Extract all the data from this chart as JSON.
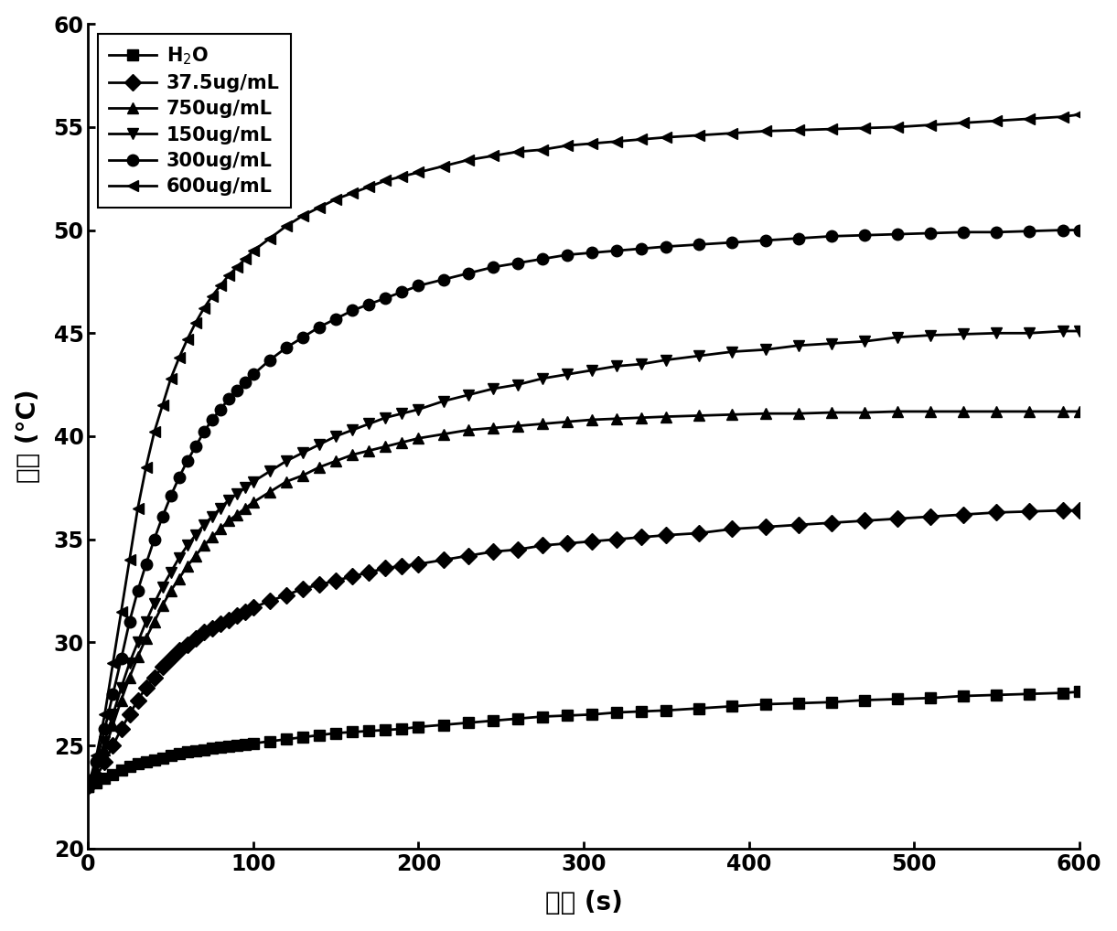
{
  "title": "",
  "xlabel": "时间 (s)",
  "ylabel": "温度 (°C)",
  "xlim": [
    0,
    600
  ],
  "ylim": [
    20,
    60
  ],
  "xticks": [
    0,
    100,
    200,
    300,
    400,
    500,
    600
  ],
  "yticks": [
    20,
    25,
    30,
    35,
    40,
    45,
    50,
    55,
    60
  ],
  "series": [
    {
      "label": "H$_2$O",
      "marker": "s",
      "color": "#000000",
      "x": [
        0,
        5,
        10,
        15,
        20,
        25,
        30,
        35,
        40,
        45,
        50,
        55,
        60,
        65,
        70,
        75,
        80,
        85,
        90,
        95,
        100,
        110,
        120,
        130,
        140,
        150,
        160,
        170,
        180,
        190,
        200,
        215,
        230,
        245,
        260,
        275,
        290,
        305,
        320,
        335,
        350,
        370,
        390,
        410,
        430,
        450,
        470,
        490,
        510,
        530,
        550,
        570,
        590,
        600
      ],
      "y": [
        23.0,
        23.2,
        23.4,
        23.6,
        23.8,
        24.0,
        24.1,
        24.2,
        24.3,
        24.4,
        24.5,
        24.6,
        24.7,
        24.75,
        24.8,
        24.85,
        24.9,
        24.95,
        25.0,
        25.05,
        25.1,
        25.2,
        25.3,
        25.4,
        25.5,
        25.6,
        25.65,
        25.7,
        25.75,
        25.8,
        25.9,
        26.0,
        26.1,
        26.2,
        26.3,
        26.4,
        26.45,
        26.5,
        26.6,
        26.65,
        26.7,
        26.8,
        26.9,
        27.0,
        27.05,
        27.1,
        27.2,
        27.25,
        27.3,
        27.4,
        27.45,
        27.5,
        27.55,
        27.6
      ]
    },
    {
      "label": "37.5ug/mL",
      "marker": "D",
      "color": "#000000",
      "x": [
        0,
        5,
        10,
        15,
        20,
        25,
        30,
        35,
        40,
        45,
        50,
        55,
        60,
        65,
        70,
        75,
        80,
        85,
        90,
        95,
        100,
        110,
        120,
        130,
        140,
        150,
        160,
        170,
        180,
        190,
        200,
        215,
        230,
        245,
        260,
        275,
        290,
        305,
        320,
        335,
        350,
        370,
        390,
        410,
        430,
        450,
        470,
        490,
        510,
        530,
        550,
        570,
        590,
        600
      ],
      "y": [
        23.0,
        23.5,
        24.2,
        25.0,
        25.8,
        26.5,
        27.2,
        27.8,
        28.3,
        28.8,
        29.2,
        29.6,
        29.9,
        30.2,
        30.5,
        30.7,
        30.9,
        31.1,
        31.3,
        31.5,
        31.7,
        32.0,
        32.3,
        32.6,
        32.8,
        33.0,
        33.2,
        33.4,
        33.6,
        33.7,
        33.8,
        34.0,
        34.2,
        34.4,
        34.5,
        34.7,
        34.8,
        34.9,
        35.0,
        35.1,
        35.2,
        35.3,
        35.5,
        35.6,
        35.7,
        35.8,
        35.9,
        36.0,
        36.1,
        36.2,
        36.3,
        36.35,
        36.4,
        36.4
      ]
    },
    {
      "label": "750ug/mL",
      "marker": "^",
      "color": "#000000",
      "x": [
        0,
        5,
        10,
        15,
        20,
        25,
        30,
        35,
        40,
        45,
        50,
        55,
        60,
        65,
        70,
        75,
        80,
        85,
        90,
        95,
        100,
        110,
        120,
        130,
        140,
        150,
        160,
        170,
        180,
        190,
        200,
        215,
        230,
        245,
        260,
        275,
        290,
        305,
        320,
        335,
        350,
        370,
        390,
        410,
        430,
        450,
        470,
        490,
        510,
        530,
        550,
        570,
        590,
        600
      ],
      "y": [
        23.0,
        23.8,
        24.8,
        26.0,
        27.2,
        28.3,
        29.3,
        30.2,
        31.0,
        31.8,
        32.5,
        33.1,
        33.7,
        34.2,
        34.7,
        35.1,
        35.5,
        35.9,
        36.2,
        36.5,
        36.8,
        37.3,
        37.8,
        38.1,
        38.5,
        38.8,
        39.1,
        39.3,
        39.5,
        39.7,
        39.9,
        40.1,
        40.3,
        40.4,
        40.5,
        40.6,
        40.7,
        40.8,
        40.85,
        40.9,
        40.95,
        41.0,
        41.05,
        41.1,
        41.1,
        41.15,
        41.15,
        41.2,
        41.2,
        41.2,
        41.2,
        41.2,
        41.2,
        41.2
      ]
    },
    {
      "label": "150ug/mL",
      "marker": "v",
      "color": "#000000",
      "x": [
        0,
        5,
        10,
        15,
        20,
        25,
        30,
        35,
        40,
        45,
        50,
        55,
        60,
        65,
        70,
        75,
        80,
        85,
        90,
        95,
        100,
        110,
        120,
        130,
        140,
        150,
        160,
        170,
        180,
        190,
        200,
        215,
        230,
        245,
        260,
        275,
        290,
        305,
        320,
        335,
        350,
        370,
        390,
        410,
        430,
        450,
        470,
        490,
        510,
        530,
        550,
        570,
        590,
        600
      ],
      "y": [
        23.0,
        24.0,
        25.2,
        26.5,
        27.8,
        29.0,
        30.0,
        31.0,
        31.9,
        32.7,
        33.4,
        34.1,
        34.7,
        35.2,
        35.7,
        36.1,
        36.5,
        36.9,
        37.2,
        37.5,
        37.8,
        38.3,
        38.8,
        39.2,
        39.6,
        40.0,
        40.3,
        40.6,
        40.9,
        41.1,
        41.3,
        41.7,
        42.0,
        42.3,
        42.5,
        42.8,
        43.0,
        43.2,
        43.4,
        43.5,
        43.7,
        43.9,
        44.1,
        44.2,
        44.4,
        44.5,
        44.6,
        44.8,
        44.9,
        44.95,
        45.0,
        45.0,
        45.1,
        45.1
      ]
    },
    {
      "label": "300ug/mL",
      "marker": "o",
      "color": "#000000",
      "x": [
        0,
        5,
        10,
        15,
        20,
        25,
        30,
        35,
        40,
        45,
        50,
        55,
        60,
        65,
        70,
        75,
        80,
        85,
        90,
        95,
        100,
        110,
        120,
        130,
        140,
        150,
        160,
        170,
        180,
        190,
        200,
        215,
        230,
        245,
        260,
        275,
        290,
        305,
        320,
        335,
        350,
        370,
        390,
        410,
        430,
        450,
        470,
        490,
        510,
        530,
        550,
        570,
        590,
        600
      ],
      "y": [
        23.0,
        24.2,
        25.8,
        27.5,
        29.2,
        31.0,
        32.5,
        33.8,
        35.0,
        36.1,
        37.1,
        38.0,
        38.8,
        39.5,
        40.2,
        40.8,
        41.3,
        41.8,
        42.2,
        42.6,
        43.0,
        43.7,
        44.3,
        44.8,
        45.3,
        45.7,
        46.1,
        46.4,
        46.7,
        47.0,
        47.3,
        47.6,
        47.9,
        48.2,
        48.4,
        48.6,
        48.8,
        48.9,
        49.0,
        49.1,
        49.2,
        49.3,
        49.4,
        49.5,
        49.6,
        49.7,
        49.75,
        49.8,
        49.85,
        49.9,
        49.9,
        49.95,
        50.0,
        50.0
      ]
    },
    {
      "label": "600ug/mL",
      "marker": "<",
      "color": "#000000",
      "x": [
        0,
        5,
        10,
        15,
        20,
        25,
        30,
        35,
        40,
        45,
        50,
        55,
        60,
        65,
        70,
        75,
        80,
        85,
        90,
        95,
        100,
        110,
        120,
        130,
        140,
        150,
        160,
        170,
        180,
        190,
        200,
        215,
        230,
        245,
        260,
        275,
        290,
        305,
        320,
        335,
        350,
        370,
        390,
        410,
        430,
        450,
        470,
        490,
        510,
        530,
        550,
        570,
        590,
        600
      ],
      "y": [
        23.0,
        24.5,
        26.5,
        29.0,
        31.5,
        34.0,
        36.5,
        38.5,
        40.2,
        41.5,
        42.8,
        43.8,
        44.7,
        45.5,
        46.2,
        46.8,
        47.3,
        47.8,
        48.2,
        48.6,
        49.0,
        49.6,
        50.2,
        50.7,
        51.1,
        51.5,
        51.8,
        52.1,
        52.4,
        52.6,
        52.8,
        53.1,
        53.4,
        53.6,
        53.8,
        53.9,
        54.1,
        54.2,
        54.3,
        54.4,
        54.5,
        54.6,
        54.7,
        54.8,
        54.85,
        54.9,
        54.95,
        55.0,
        55.1,
        55.2,
        55.3,
        55.4,
        55.5,
        55.6
      ]
    }
  ],
  "linewidth": 2.0,
  "markersize": 9,
  "legend_fontsize": 15,
  "axis_label_fontsize": 20,
  "tick_fontsize": 17,
  "background_color": "#ffffff",
  "grid": false
}
